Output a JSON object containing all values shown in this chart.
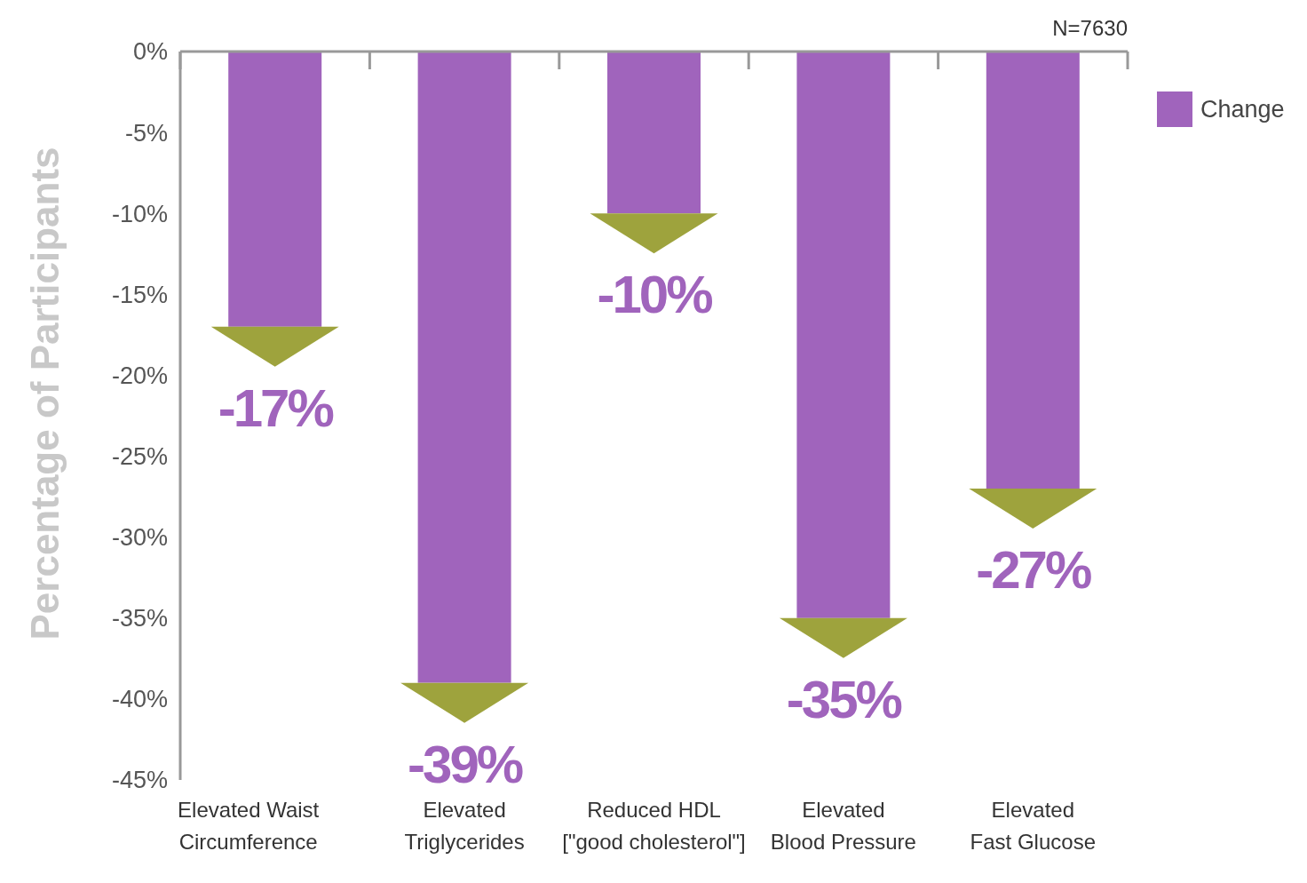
{
  "chart_data": {
    "type": "bar",
    "ylabel": "Percentage of Participants",
    "categories": [
      "Elevated Waist\nCircumference",
      "Elevated\nTriglycerides",
      "Reduced HDL\n[\"good cholesterol\"]",
      "Elevated\nBlood Pressure",
      "Elevated\nFast Glucose"
    ],
    "series": [
      {
        "name": "Change",
        "color": "#a064bc",
        "values": [
          -17,
          -39,
          -10,
          -35,
          -27
        ],
        "value_labels": [
          "-17%",
          "-39%",
          "-10%",
          "-35%",
          "-27%"
        ]
      }
    ],
    "ylim": [
      -45,
      0
    ],
    "yticks": [
      {
        "value": 0,
        "label": "0%"
      },
      {
        "value": -5,
        "label": "-5%"
      },
      {
        "value": -10,
        "label": "-10%"
      },
      {
        "value": -15,
        "label": "-15%"
      },
      {
        "value": -20,
        "label": "-20%"
      },
      {
        "value": -25,
        "label": "-25%"
      },
      {
        "value": -30,
        "label": "-30%"
      },
      {
        "value": -35,
        "label": "-35%"
      },
      {
        "value": -40,
        "label": "-40%"
      },
      {
        "value": -45,
        "label": "-45%"
      }
    ],
    "annotations": [
      "N=7630"
    ],
    "legend": "top right",
    "grid": false
  }
}
